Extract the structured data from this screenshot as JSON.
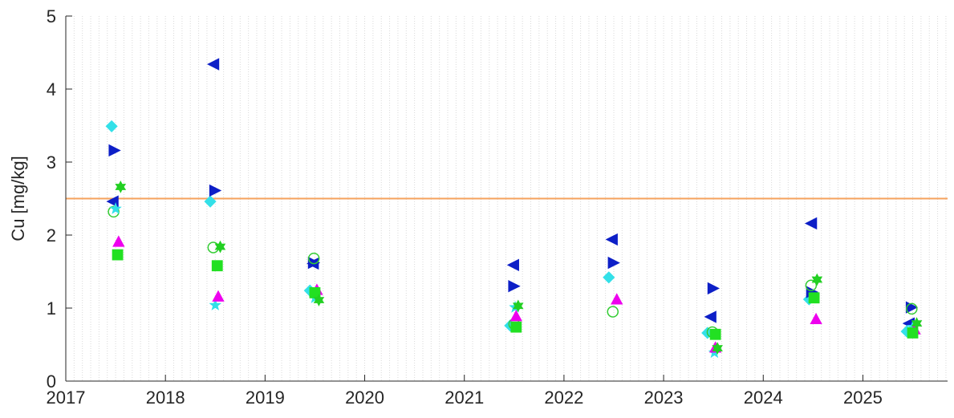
{
  "chart_data": {
    "type": "scatter",
    "ylabel": "Cu  [mg/kg]",
    "xlim": [
      2017.0,
      2025.85
    ],
    "ylim": [
      0,
      5
    ],
    "x_ticks": [
      "2017",
      "2018",
      "2019",
      "2020",
      "2021",
      "2022",
      "2023",
      "2024",
      "2025"
    ],
    "y_ticks": [
      "0",
      "1",
      "2",
      "3",
      "4",
      "5"
    ],
    "grid": "vertical-minor-dotted",
    "reference_line": {
      "y": 2.5,
      "color": "#f5a25d"
    },
    "series": [
      {
        "marker": "diamond",
        "color": "#33e0e8",
        "filled": true,
        "x": [
          2017.46,
          2018.45,
          2019.45,
          2021.46,
          2022.45,
          2023.44,
          2024.46,
          2025.44
        ],
        "y": [
          3.49,
          2.46,
          1.24,
          0.76,
          1.42,
          0.66,
          1.12,
          0.68
        ]
      },
      {
        "marker": "triangle-left",
        "color": "#0d1fc7",
        "filled": true,
        "x": [
          2017.47,
          2018.48,
          2019.48,
          2021.49,
          2022.48,
          2023.47,
          2024.48,
          2025.46
        ],
        "y": [
          2.46,
          4.34,
          1.61,
          1.59,
          1.94,
          0.88,
          2.16,
          0.79
        ]
      },
      {
        "marker": "triangle-right",
        "color": "#0d1fc7",
        "filled": true,
        "x": [
          2017.49,
          2018.5,
          2019.49,
          2021.5,
          2022.5,
          2023.5,
          2024.49,
          2025.49
        ],
        "y": [
          3.16,
          2.61,
          1.62,
          1.3,
          1.62,
          1.27,
          1.22,
          1.01
        ]
      },
      {
        "marker": "circle",
        "color": "#33cc33",
        "filled": false,
        "x": [
          2017.48,
          2018.48,
          2019.49,
          2021.5,
          2022.49,
          2023.49,
          2024.48,
          2025.49
        ],
        "y": [
          2.32,
          1.83,
          1.68,
          0.78,
          0.95,
          0.67,
          1.31,
          0.99
        ]
      },
      {
        "marker": "star",
        "color": "#33e0e8",
        "filled": true,
        "x": [
          2017.5,
          2018.5,
          2019.5,
          2021.51,
          2023.51,
          2025.5
        ],
        "y": [
          2.36,
          1.04,
          1.14,
          1.01,
          0.39,
          0.74
        ]
      },
      {
        "marker": "triangle-up",
        "color": "#ee00ee",
        "filled": true,
        "x": [
          2017.53,
          2018.53,
          2019.52,
          2021.52,
          2022.53,
          2023.52,
          2024.53,
          2025.52
        ],
        "y": [
          1.91,
          1.16,
          1.25,
          0.89,
          1.12,
          0.46,
          0.85,
          0.71
        ]
      },
      {
        "marker": "square",
        "color": "#22e022",
        "filled": true,
        "x": [
          2017.52,
          2018.52,
          2019.5,
          2021.52,
          2023.52,
          2024.51,
          2025.5
        ],
        "y": [
          1.73,
          1.58,
          1.21,
          0.74,
          0.64,
          1.14,
          0.66
        ]
      },
      {
        "marker": "hexagram",
        "color": "#22d022",
        "filled": true,
        "x": [
          2017.55,
          2018.55,
          2019.54,
          2021.54,
          2023.54,
          2024.54,
          2025.54
        ],
        "y": [
          2.66,
          1.84,
          1.11,
          1.03,
          0.45,
          1.39,
          0.79
        ]
      }
    ]
  }
}
